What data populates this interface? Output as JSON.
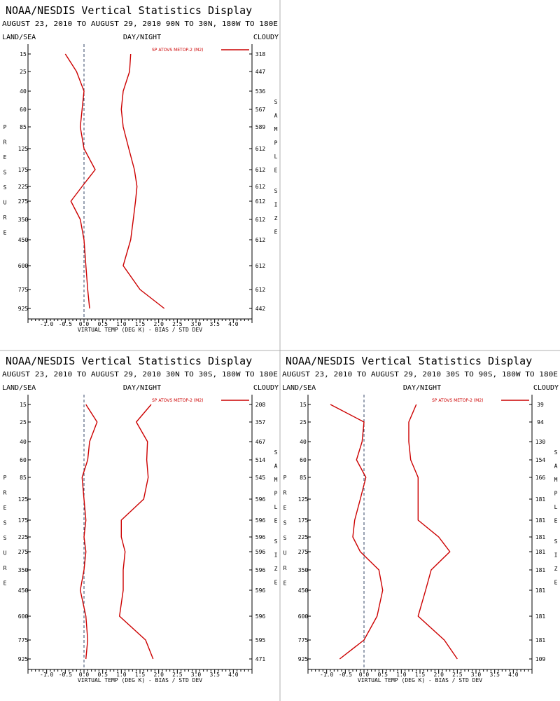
{
  "chart_data": [
    {
      "type": "line",
      "title": "NOAA/NESDIS Vertical Statistics Display",
      "subtitle": "AUGUST 23, 2010 TO AUGUST 29, 2010 90N TO 30N, 180W TO 180E",
      "label_left": "LAND/SEA",
      "label_center": "DAY/NIGHT",
      "label_right": "CLOUDY",
      "ylabel": "PRESSURE",
      "y2label": "SAMPLE SIZE",
      "xlabel": "VIRTUAL TEMP (DEG K) - BIAS / STD DEV",
      "legend": "SP ATOVS METOP-2 (M2)",
      "xlim": [
        -1.5,
        4.5
      ],
      "xticks": [
        -1.0,
        -0.5,
        0.0,
        0.5,
        1.0,
        1.5,
        2.0,
        2.5,
        3.0,
        3.5,
        4.0
      ],
      "levels": [
        15,
        25,
        40,
        60,
        85,
        125,
        175,
        225,
        275,
        350,
        450,
        600,
        775,
        925
      ],
      "sample_sizes": [
        318,
        447,
        536,
        567,
        589,
        612,
        612,
        612,
        612,
        612,
        612,
        612,
        612,
        442
      ],
      "series": [
        {
          "name": "BIAS",
          "values": [
            -0.5,
            -0.2,
            0.0,
            -0.05,
            -0.1,
            0.0,
            0.3,
            -0.05,
            -0.35,
            -0.1,
            0.0,
            0.05,
            0.1,
            0.15
          ]
        },
        {
          "name": "STD DEV",
          "values": [
            1.25,
            1.22,
            1.05,
            1.0,
            1.05,
            1.2,
            1.35,
            1.42,
            1.38,
            1.32,
            1.25,
            1.05,
            1.5,
            2.15
          ]
        }
      ]
    },
    {
      "type": "line",
      "title": "NOAA/NESDIS Vertical Statistics Display",
      "subtitle": "AUGUST 23, 2010 TO AUGUST 29, 2010 30N TO 30S, 180W TO 180E",
      "label_left": "LAND/SEA",
      "label_center": "DAY/NIGHT",
      "label_right": "CLOUDY",
      "ylabel": "PRESSURE",
      "y2label": "SAMPLE SIZE",
      "xlabel": "VIRTUAL TEMP (DEG K) - BIAS / STD DEV",
      "legend": "SP ATOVS METOP-2 (M2)",
      "xlim": [
        -1.5,
        4.5
      ],
      "xticks": [
        -1.0,
        -0.5,
        0.0,
        0.5,
        1.0,
        1.5,
        2.0,
        2.5,
        3.0,
        3.5,
        4.0
      ],
      "levels": [
        15,
        25,
        40,
        60,
        85,
        125,
        175,
        225,
        275,
        350,
        450,
        600,
        775,
        925
      ],
      "sample_sizes": [
        208,
        357,
        467,
        514,
        545,
        596,
        596,
        596,
        596,
        596,
        596,
        596,
        595,
        471
      ],
      "series": [
        {
          "name": "BIAS",
          "values": [
            0.05,
            0.35,
            0.15,
            0.1,
            -0.05,
            0.0,
            0.05,
            0.0,
            0.05,
            0.0,
            -0.1,
            0.05,
            0.1,
            0.05
          ]
        },
        {
          "name": "STD DEV",
          "values": [
            1.8,
            1.4,
            1.7,
            1.68,
            1.72,
            1.6,
            1.0,
            1.0,
            1.1,
            1.05,
            1.05,
            0.95,
            1.65,
            1.85
          ]
        }
      ]
    },
    {
      "type": "line",
      "title": "NOAA/NESDIS Vertical Statistics Display",
      "subtitle": "AUGUST 23, 2010 TO AUGUST 29, 2010 30S TO 90S, 180W TO 180E",
      "label_left": "LAND/SEA",
      "label_center": "DAY/NIGHT",
      "label_right": "CLOUDY",
      "ylabel": "PRESSURE",
      "y2label": "SAMPLE SIZE",
      "xlabel": "VIRTUAL TEMP (DEG K) - BIAS / STD DEV",
      "legend": "SP ATOVS METOP-2 (M2)",
      "xlim": [
        -1.5,
        4.5
      ],
      "xticks": [
        -1.0,
        -0.5,
        0.0,
        0.5,
        1.0,
        1.5,
        2.0,
        2.5,
        3.0,
        3.5,
        4.0
      ],
      "levels": [
        15,
        25,
        40,
        60,
        85,
        125,
        175,
        225,
        275,
        350,
        450,
        600,
        775,
        925
      ],
      "sample_sizes": [
        39,
        94,
        130,
        154,
        166,
        181,
        181,
        181,
        181,
        181,
        181,
        181,
        181,
        109
      ],
      "series": [
        {
          "name": "BIAS",
          "values": [
            -0.9,
            0.0,
            -0.05,
            -0.2,
            0.05,
            -0.1,
            -0.25,
            -0.3,
            -0.1,
            0.4,
            0.5,
            0.35,
            0.0,
            -0.65
          ]
        },
        {
          "name": "STD DEV",
          "values": [
            1.4,
            1.2,
            1.2,
            1.25,
            1.45,
            1.45,
            1.45,
            2.0,
            2.3,
            1.8,
            1.65,
            1.45,
            2.15,
            2.5
          ]
        }
      ]
    }
  ]
}
